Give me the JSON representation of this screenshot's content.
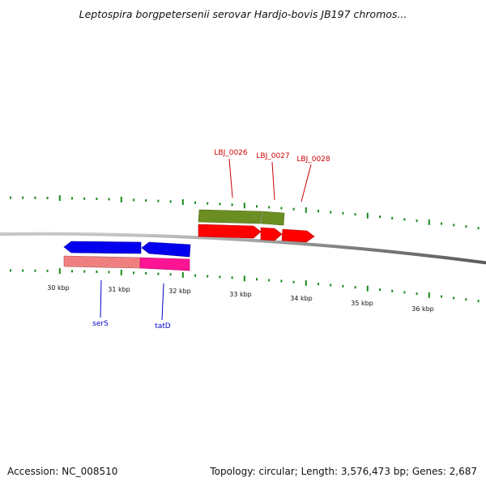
{
  "header": {
    "title": "Leptospira borgpetersenii serovar Hardjo-bovis JB197 chromos..."
  },
  "footer": {
    "accession": "Accession: NC_008510",
    "summary": "Topology: circular; Length: 3,576,473 bp; Genes: 2,687"
  },
  "ruler": {
    "unit": "kbp",
    "labels": [
      "30 kbp",
      "31 kbp",
      "32 kbp",
      "33 kbp",
      "34 kbp",
      "35 kbp",
      "36 kbp"
    ]
  },
  "genes": {
    "forward": [
      "LBJ_0026",
      "LBJ_0027",
      "LBJ_0028"
    ],
    "reverse": [
      "serS",
      "tatD"
    ]
  },
  "colors": {
    "backbone": "#808080",
    "ticks": "#1a8a1a",
    "forward_cds": "#ff0000",
    "forward_gene": "#6b8e23",
    "reverse_cds": "#0000ee",
    "reverse_gene_1": "#f08080",
    "reverse_gene_2": "#ff1493",
    "forward_label": "#cc0000",
    "reverse_label": "#0000cc"
  }
}
